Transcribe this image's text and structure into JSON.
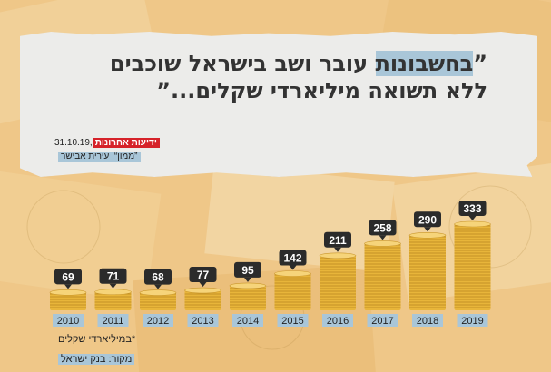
{
  "headline": {
    "open_quote": "”",
    "highlight": "בחשבונות",
    "line1_rest": " עובר ושב בישראל שוכבים",
    "line2": "ללא תשואה מיליארדי שקלים...”"
  },
  "press": {
    "paper_name": "ידיעות אחרונות",
    "date": "31.10.19,",
    "reporter": "”ממון“, עירית אבישר"
  },
  "footnotes": {
    "unit": "*במיליארדי שקלים",
    "source": "מקור: בנק ישראל"
  },
  "colors": {
    "coin_gold": "#e8b53a",
    "coin_light": "#f6d47a",
    "year_bar": "#a9c6d8",
    "bubble": "#2b2b2b",
    "highlight": "#a9c6d8",
    "paper_red": "#d62229"
  },
  "chart_data": {
    "type": "bar",
    "categories": [
      "2010",
      "2011",
      "2012",
      "2013",
      "2014",
      "2015",
      "2016",
      "2017",
      "2018",
      "2019"
    ],
    "values": [
      69,
      71,
      68,
      77,
      95,
      142,
      211,
      258,
      290,
      333
    ],
    "title": "",
    "xlabel": "",
    "ylabel": "",
    "ylim": [
      0,
      340
    ],
    "grid": false,
    "legend": "none",
    "mark_style": "stacked-coins"
  }
}
